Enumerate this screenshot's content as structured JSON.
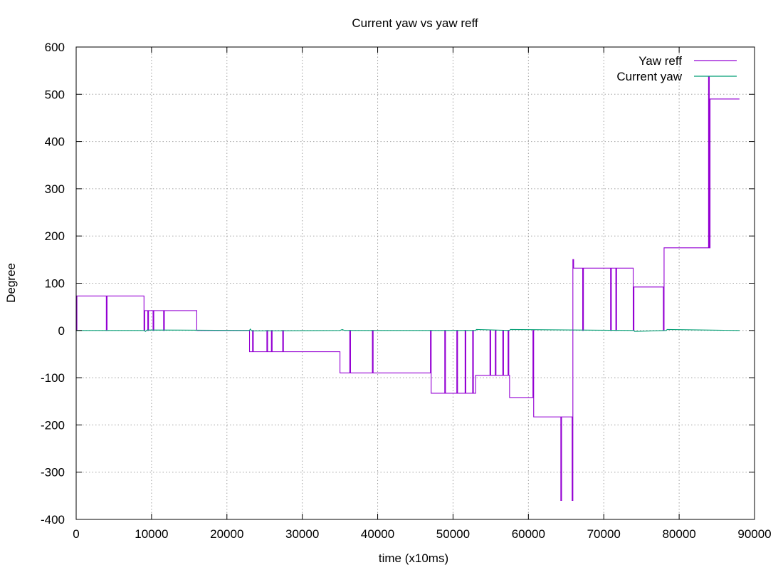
{
  "chart_data": {
    "type": "line",
    "title": "Current yaw vs yaw reff",
    "xlabel": "time (x10ms)",
    "ylabel": "Degree",
    "xlim": [
      0,
      90000
    ],
    "ylim": [
      -400,
      600
    ],
    "xticks": [
      0,
      10000,
      20000,
      30000,
      40000,
      50000,
      60000,
      70000,
      80000,
      90000
    ],
    "yticks": [
      -400,
      -300,
      -200,
      -100,
      0,
      100,
      200,
      300,
      400,
      500,
      600
    ],
    "grid": true,
    "legend_position": "top-right",
    "series": [
      {
        "name": "Yaw reff",
        "color": "#9400d3",
        "style": "step",
        "points": [
          [
            0,
            0
          ],
          [
            100,
            0
          ],
          [
            100,
            73
          ],
          [
            4000,
            73
          ],
          [
            4000,
            0
          ],
          [
            4100,
            0
          ],
          [
            4100,
            73
          ],
          [
            9000,
            73
          ],
          [
            9000,
            0
          ],
          [
            9100,
            0
          ],
          [
            9100,
            42
          ],
          [
            9500,
            42
          ],
          [
            9500,
            0
          ],
          [
            9600,
            0
          ],
          [
            9600,
            42
          ],
          [
            10200,
            42
          ],
          [
            10200,
            0
          ],
          [
            10300,
            0
          ],
          [
            10300,
            42
          ],
          [
            11600,
            42
          ],
          [
            11600,
            0
          ],
          [
            11700,
            0
          ],
          [
            11700,
            42
          ],
          [
            16000,
            42
          ],
          [
            16000,
            0
          ],
          [
            23000,
            0
          ],
          [
            23000,
            -45
          ],
          [
            23400,
            -45
          ],
          [
            23400,
            0
          ],
          [
            23500,
            0
          ],
          [
            23500,
            -45
          ],
          [
            25300,
            -45
          ],
          [
            25300,
            0
          ],
          [
            25400,
            0
          ],
          [
            25400,
            -45
          ],
          [
            25900,
            -45
          ],
          [
            25900,
            0
          ],
          [
            26000,
            0
          ],
          [
            26000,
            -45
          ],
          [
            27400,
            -45
          ],
          [
            27400,
            0
          ],
          [
            27500,
            0
          ],
          [
            27500,
            -45
          ],
          [
            35000,
            -45
          ],
          [
            35000,
            -90
          ],
          [
            36300,
            -90
          ],
          [
            36300,
            0
          ],
          [
            36400,
            0
          ],
          [
            36400,
            -90
          ],
          [
            39300,
            -90
          ],
          [
            39300,
            0
          ],
          [
            39400,
            0
          ],
          [
            39400,
            -90
          ],
          [
            47000,
            -90
          ],
          [
            47000,
            0
          ],
          [
            47100,
            0
          ],
          [
            47100,
            -133
          ],
          [
            48900,
            -133
          ],
          [
            48900,
            0
          ],
          [
            49000,
            0
          ],
          [
            49000,
            -133
          ],
          [
            50500,
            -133
          ],
          [
            50500,
            0
          ],
          [
            50600,
            0
          ],
          [
            50600,
            -133
          ],
          [
            51600,
            -133
          ],
          [
            51600,
            0
          ],
          [
            51700,
            0
          ],
          [
            51700,
            -133
          ],
          [
            52600,
            -133
          ],
          [
            52600,
            0
          ],
          [
            52700,
            0
          ],
          [
            52700,
            -133
          ],
          [
            53000,
            -133
          ],
          [
            53000,
            -95
          ],
          [
            54900,
            -95
          ],
          [
            54900,
            0
          ],
          [
            55000,
            0
          ],
          [
            55000,
            -95
          ],
          [
            55600,
            -95
          ],
          [
            55600,
            0
          ],
          [
            55700,
            0
          ],
          [
            55700,
            -95
          ],
          [
            56600,
            -95
          ],
          [
            56600,
            0
          ],
          [
            56700,
            0
          ],
          [
            56700,
            -95
          ],
          [
            57300,
            -95
          ],
          [
            57300,
            0
          ],
          [
            57400,
            0
          ],
          [
            57400,
            -95
          ],
          [
            57500,
            -95
          ],
          [
            57500,
            -142
          ],
          [
            60600,
            -142
          ],
          [
            60600,
            0
          ],
          [
            60700,
            0
          ],
          [
            60700,
            -183
          ],
          [
            64300,
            -183
          ],
          [
            64300,
            -360
          ],
          [
            64400,
            -360
          ],
          [
            64400,
            -183
          ],
          [
            65800,
            -183
          ],
          [
            65800,
            -360
          ],
          [
            65900,
            -360
          ],
          [
            65900,
            150
          ],
          [
            66000,
            150
          ],
          [
            66000,
            132
          ],
          [
            67200,
            132
          ],
          [
            67200,
            0
          ],
          [
            67300,
            0
          ],
          [
            67300,
            132
          ],
          [
            70900,
            132
          ],
          [
            70900,
            0
          ],
          [
            71000,
            0
          ],
          [
            71000,
            132
          ],
          [
            71600,
            132
          ],
          [
            71600,
            0
          ],
          [
            71700,
            0
          ],
          [
            71700,
            132
          ],
          [
            73900,
            132
          ],
          [
            73900,
            0
          ],
          [
            74000,
            0
          ],
          [
            74000,
            92
          ],
          [
            77900,
            92
          ],
          [
            77900,
            0
          ],
          [
            78000,
            0
          ],
          [
            78000,
            175
          ],
          [
            83900,
            175
          ],
          [
            83900,
            538
          ],
          [
            84000,
            538
          ],
          [
            84000,
            175
          ],
          [
            84100,
            175
          ],
          [
            84100,
            490
          ],
          [
            88000,
            490
          ]
        ]
      },
      {
        "name": "Current yaw",
        "color": "#009e73",
        "style": "line",
        "points": [
          [
            0,
            0
          ],
          [
            9000,
            0
          ],
          [
            9200,
            -2
          ],
          [
            9400,
            1
          ],
          [
            23000,
            0
          ],
          [
            23100,
            3
          ],
          [
            23300,
            -1
          ],
          [
            35000,
            0
          ],
          [
            35300,
            2
          ],
          [
            35600,
            0
          ],
          [
            53000,
            0
          ],
          [
            53100,
            2
          ],
          [
            57500,
            0
          ],
          [
            57600,
            2
          ],
          [
            74000,
            0
          ],
          [
            74100,
            -2
          ],
          [
            78300,
            0
          ],
          [
            78400,
            2
          ],
          [
            88000,
            0
          ]
        ]
      }
    ]
  }
}
